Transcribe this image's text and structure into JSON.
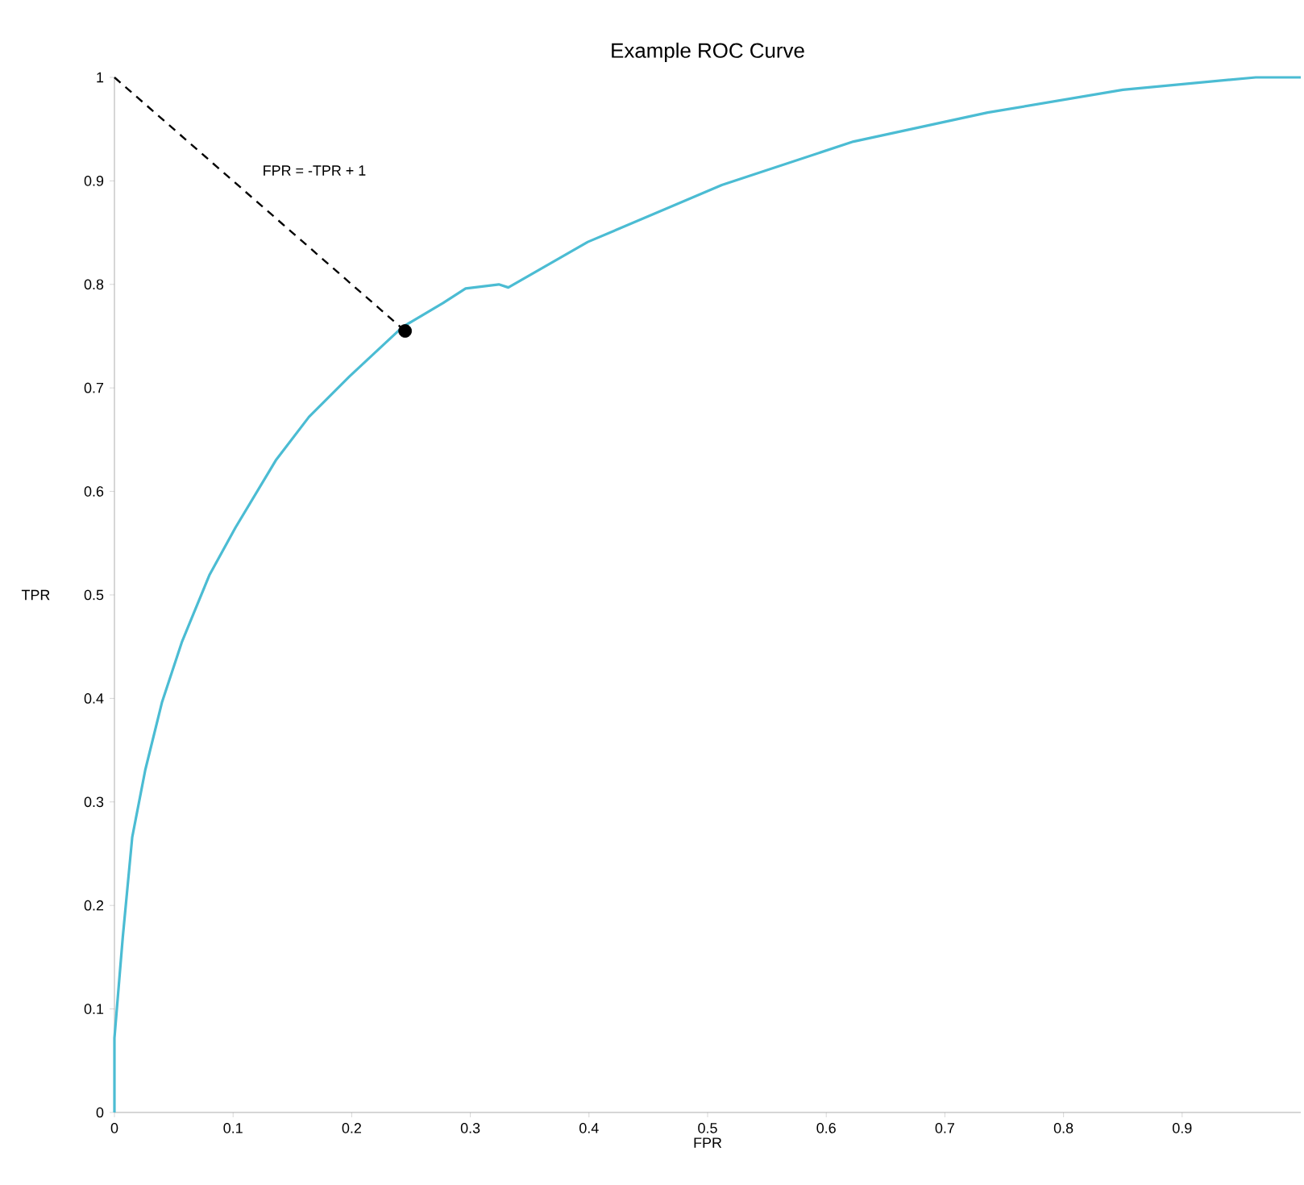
{
  "chart_data": {
    "type": "line",
    "title": "Example ROC Curve",
    "xlabel": "FPR",
    "ylabel": "TPR",
    "xlim": [
      0,
      1
    ],
    "ylim": [
      0,
      1
    ],
    "xticks": [
      0,
      0.1,
      0.2,
      0.3,
      0.4,
      0.5,
      0.6,
      0.7,
      0.8,
      0.9
    ],
    "yticks": [
      0,
      0.1,
      0.2,
      0.3,
      0.4,
      0.5,
      0.6,
      0.7,
      0.8,
      0.9,
      1
    ],
    "grid": false,
    "annotations": [
      "FPR = -TPR + 1"
    ],
    "series": [
      {
        "color": "#4bbcd3",
        "marker": "none",
        "line_style": "solid",
        "x": [
          0,
          0.0,
          0.007,
          0.015,
          0.026,
          0.04,
          0.057,
          0.08,
          0.102,
          0.136,
          0.164,
          0.198,
          0.243,
          0.277,
          0.296,
          0.324,
          0.332,
          0.399,
          0.512,
          0.623,
          0.736,
          0.85,
          0.962,
          1.0
        ],
        "values": [
          0,
          0.072,
          0.169,
          0.266,
          0.331,
          0.396,
          0.455,
          0.519,
          0.565,
          0.63,
          0.672,
          0.711,
          0.759,
          0.782,
          0.796,
          0.8,
          0.797,
          0.841,
          0.896,
          0.938,
          0.966,
          0.988,
          1.0,
          1.0
        ]
      },
      {
        "color": "#000000",
        "marker": "none",
        "line_style": "dashed",
        "x": [
          0,
          0.245
        ],
        "values": [
          1,
          0.755
        ]
      },
      {
        "type": "scatter",
        "color": "#000000",
        "marker": "circle",
        "x": [
          0.245
        ],
        "values": [
          0.755
        ]
      }
    ]
  }
}
